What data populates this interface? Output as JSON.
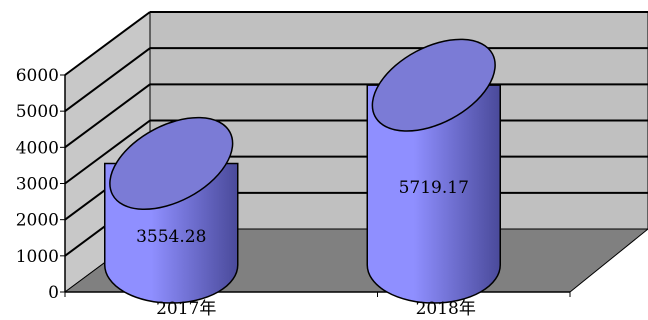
{
  "chart_data": {
    "type": "bar",
    "style": "3d-cylinder",
    "categories": [
      "2017年",
      "2018年"
    ],
    "values": [
      3554.28,
      5719.17
    ],
    "data_labels": [
      "3554.28",
      "5719.17"
    ],
    "title": "",
    "xlabel": "",
    "ylabel": "",
    "ylim": [
      0,
      6000
    ],
    "yticks": [
      "0",
      "1000",
      "2000",
      "3000",
      "4000",
      "5000",
      "6000"
    ],
    "grid": true,
    "legend": "none",
    "colors": {
      "bar_front": "#8f8fff",
      "bar_dark": "#4a4a9a",
      "bar_top": "#7b7bd6",
      "back_wall": "#c0c0c0",
      "side_wall": "#c8c8c8",
      "floor": "#808080",
      "outline": "#000000"
    }
  }
}
